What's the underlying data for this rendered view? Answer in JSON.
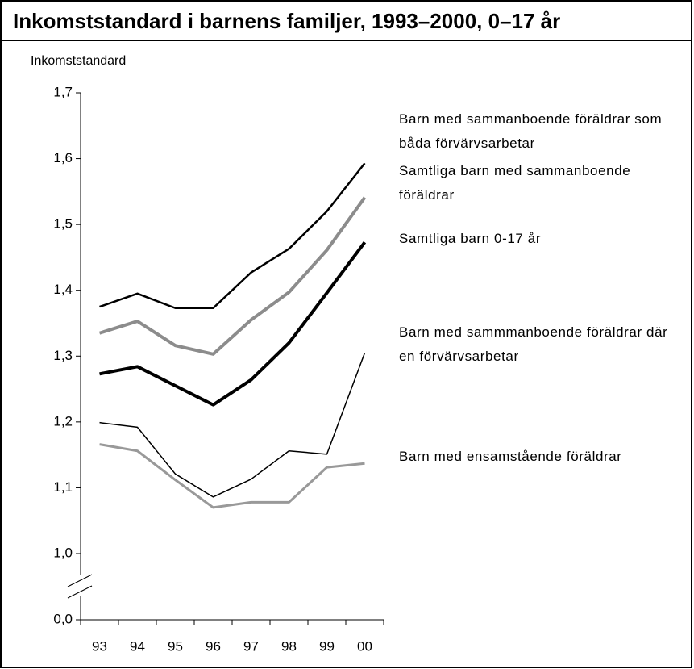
{
  "chart_data": {
    "type": "line",
    "title": "Inkomststandard i barnens familjer, 1993–2000, 0–17 år",
    "y_label": "Inkomststandard",
    "categories": [
      "93",
      "94",
      "95",
      "96",
      "97",
      "98",
      "99",
      "00"
    ],
    "ylim": [
      1.0,
      1.7
    ],
    "yticks": [
      {
        "value": 0,
        "label": "0,0"
      },
      {
        "value": 1.0,
        "label": "1,0"
      },
      {
        "value": 1.1,
        "label": "1,1"
      },
      {
        "value": 1.2,
        "label": "1,2"
      },
      {
        "value": 1.3,
        "label": "1,3"
      },
      {
        "value": 1.4,
        "label": "1,4"
      },
      {
        "value": 1.5,
        "label": "1,5"
      },
      {
        "value": 1.6,
        "label": "1,6"
      },
      {
        "value": 1.7,
        "label": "1,7"
      }
    ],
    "axis_break": true,
    "series": [
      {
        "name": "Barn med sammanboende föräldrar som båda förvärvsarbetar",
        "color": "#000000",
        "line_width": 2.5,
        "values": [
          1.375,
          1.395,
          1.373,
          1.373,
          1.427,
          1.463,
          1.52,
          1.593
        ]
      },
      {
        "name": "Samtliga barn med sammanboende föräldrar",
        "color": "#8c8c8c",
        "line_width": 4,
        "values": [
          1.335,
          1.353,
          1.316,
          1.303,
          1.355,
          1.397,
          1.461,
          1.541
        ]
      },
      {
        "name": "Samtliga barn 0-17 år",
        "color": "#000000",
        "line_width": 4,
        "values": [
          1.273,
          1.284,
          1.255,
          1.226,
          1.264,
          1.32,
          1.396,
          1.473
        ]
      },
      {
        "name": "Barn med sammmanboende föräldrar där en förvärvsarbetar",
        "color": "#000000",
        "line_width": 1.5,
        "values": [
          1.199,
          1.192,
          1.121,
          1.086,
          1.113,
          1.156,
          1.151,
          1.305
        ]
      },
      {
        "name": "Barn med ensamstående föräldrar",
        "color": "#999999",
        "line_width": 3,
        "values": [
          1.166,
          1.156,
          1.112,
          1.07,
          1.078,
          1.078,
          1.131,
          1.137
        ]
      }
    ]
  }
}
